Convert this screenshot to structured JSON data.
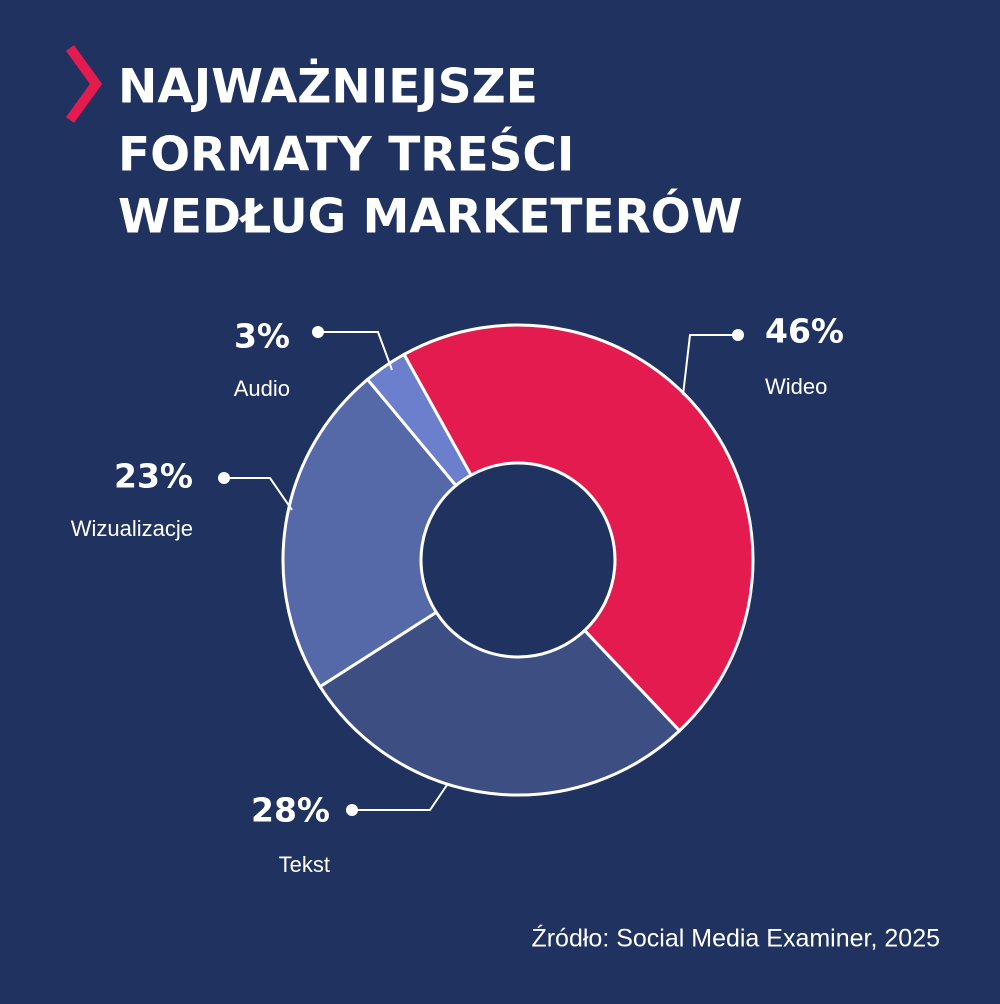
{
  "chart_data": {
    "type": "pie",
    "title": [
      "NAJWAŻNIEJSZE",
      "FORMATY TREŚCI",
      "WEDŁUG MARKETERÓW"
    ],
    "categories": [
      "Wideo",
      "Tekst",
      "Wizualizacje",
      "Audio"
    ],
    "values": [
      46,
      28,
      23,
      3
    ],
    "value_labels": [
      "46%",
      "28%",
      "23%",
      "3%"
    ],
    "colors": [
      "#e31b4f",
      "#3d4e82",
      "#5568a8",
      "#6b7fcc"
    ],
    "donut": true,
    "source": "Źródło: Social Media Examiner, 2025"
  }
}
